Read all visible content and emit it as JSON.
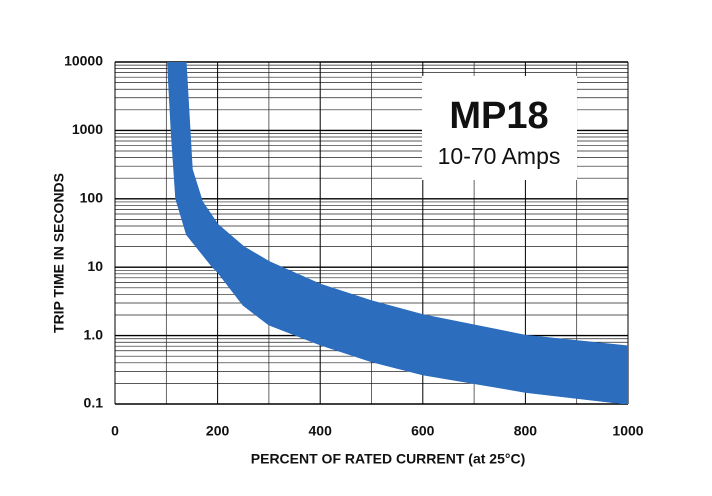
{
  "chart_data": {
    "type": "band",
    "title": "MP18",
    "subtitle": "10-70 Amps",
    "x_label": "PERCENT OF RATED CURRENT (at 25°C)",
    "y_label": "TRIP TIME IN SECONDS",
    "xlim": [
      0,
      1000
    ],
    "xticks": [
      0,
      200,
      400,
      600,
      800,
      1000
    ],
    "ylim": [
      0.1,
      10000
    ],
    "y_scale": "log",
    "yticks": [
      0.1,
      {
        "value": 1,
        "label": "1.0"
      },
      10,
      100,
      1000,
      10000
    ],
    "grid": true,
    "color": "#2c6dbd",
    "series": [
      {
        "color": "#2c6dbd",
        "x": [
          138,
          150,
          170,
          200,
          250,
          300,
          400,
          500,
          600,
          800,
          1000
        ],
        "values": [
          10000,
          270,
          90,
          42,
          20,
          12,
          5.6,
          3.2,
          2,
          1,
          0.7
        ]
      },
      {
        "color": "#2c6dbd",
        "x": [
          103,
          110,
          119,
          140,
          191,
          200,
          250,
          300,
          400,
          500,
          600,
          800,
          1000
        ],
        "values": [
          10000,
          1000,
          100,
          30,
          10,
          8.6,
          2.8,
          1.45,
          0.74,
          0.42,
          0.27,
          0.15,
          0.1
        ]
      }
    ]
  }
}
